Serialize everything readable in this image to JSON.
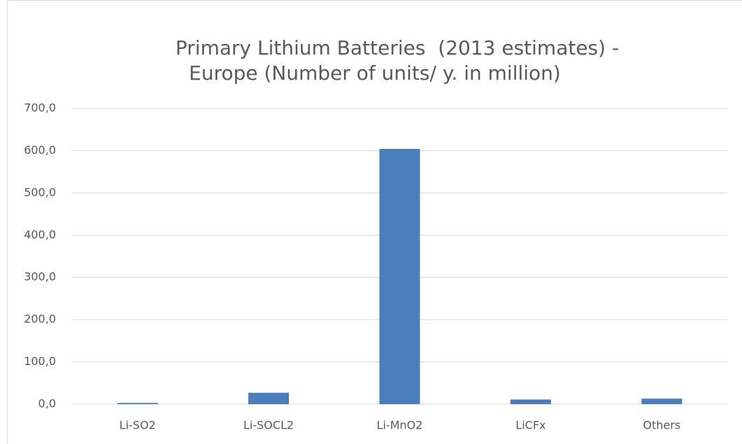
{
  "chart_data": {
    "type": "bar",
    "title": [
      "Primary Lithium Batteries  (2013 estimates) -",
      "Europe (Number of units/ y. in million)"
    ],
    "categories": [
      "Li-SO2",
      "Li-SOCL2",
      "Li-MnO2",
      "LiCFx",
      "Others"
    ],
    "values": [
      3,
      27,
      604,
      11,
      13
    ],
    "color": "#4a7ebb",
    "ylim": [
      0,
      700
    ],
    "yticks": [
      {
        "value": 0,
        "label": "0,0"
      },
      {
        "value": 100,
        "label": "100,0"
      },
      {
        "value": 200,
        "label": "200,0"
      },
      {
        "value": 300,
        "label": "300,0"
      },
      {
        "value": 400,
        "label": "400,0"
      },
      {
        "value": 500,
        "label": "500,0"
      },
      {
        "value": 600,
        "label": "600,0"
      },
      {
        "value": 700,
        "label": "700,0"
      }
    ],
    "grid": true
  }
}
